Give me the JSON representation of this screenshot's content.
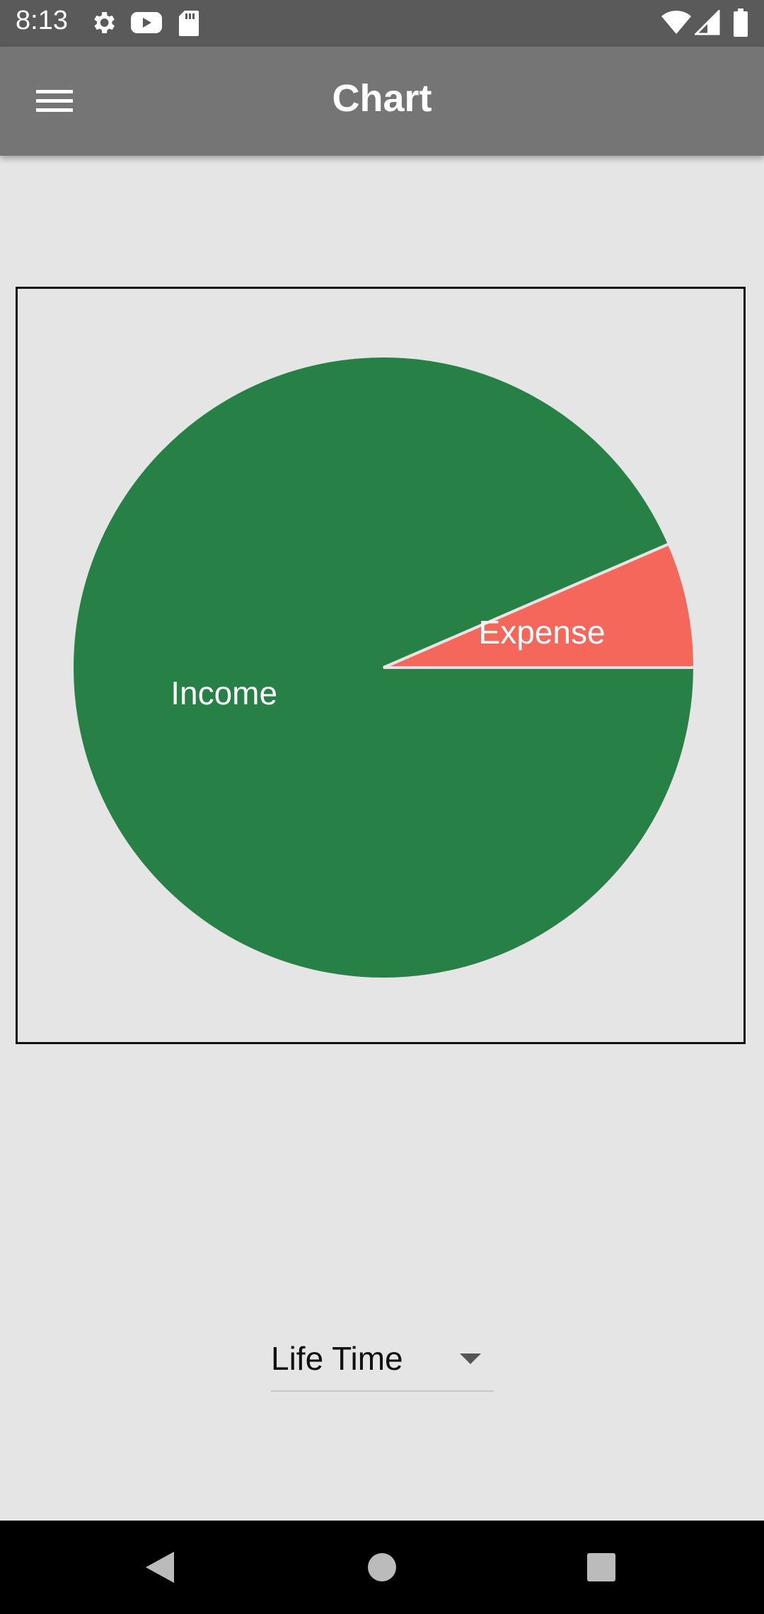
{
  "status_bar": {
    "time": "8:13",
    "left_icons": [
      "gear-icon",
      "youtube-icon",
      "sd-card-icon"
    ],
    "right_icons": [
      "wifi-icon",
      "signal-icon",
      "battery-icon"
    ]
  },
  "app_bar": {
    "title": "Chart",
    "menu_icon": "hamburger-menu-icon"
  },
  "chart_data": {
    "type": "pie",
    "slices": [
      {
        "label": "Income",
        "value": 93.5,
        "color": "#278146"
      },
      {
        "label": "Expense",
        "value": 6.5,
        "color": "#f5675b"
      }
    ],
    "start_angle_deg": 0,
    "direction": "counterclockwise-expense-first",
    "legend": "none",
    "label_color": "#ffffff"
  },
  "period_select": {
    "selected": "Life Time",
    "icon": "dropdown-arrow-icon"
  },
  "nav_bar": {
    "buttons": [
      "back-icon",
      "home-icon",
      "recents-icon"
    ]
  }
}
